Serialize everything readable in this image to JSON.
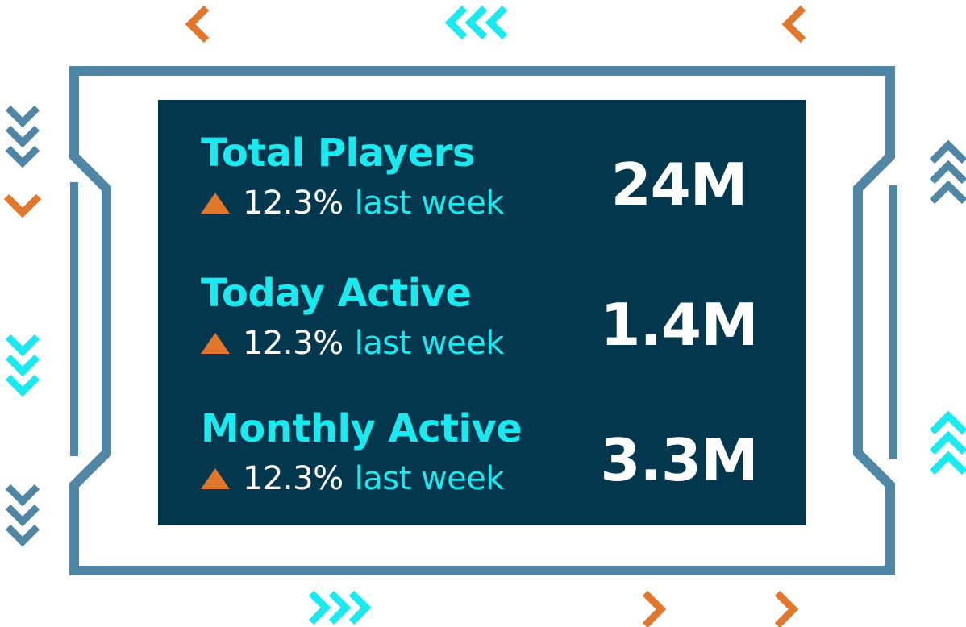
{
  "colors": {
    "frame": "#4f86a6",
    "panel": "#03374d",
    "cyan": "#19eaf0",
    "orange": "#e2762b",
    "white": "#ffffff"
  },
  "stats": [
    {
      "label": "Total Players",
      "change": "12.3%",
      "period": "last week",
      "value": "24M",
      "trend_icon": "triangle-up-icon"
    },
    {
      "label": "Today Active",
      "change": "12.3%",
      "period": "last week",
      "value": "1.4M",
      "trend_icon": "triangle-up-icon"
    },
    {
      "label": "Monthly Active",
      "change": "12.3%",
      "period": "last week",
      "value": "3.3M",
      "trend_icon": "triangle-up-icon"
    }
  ]
}
